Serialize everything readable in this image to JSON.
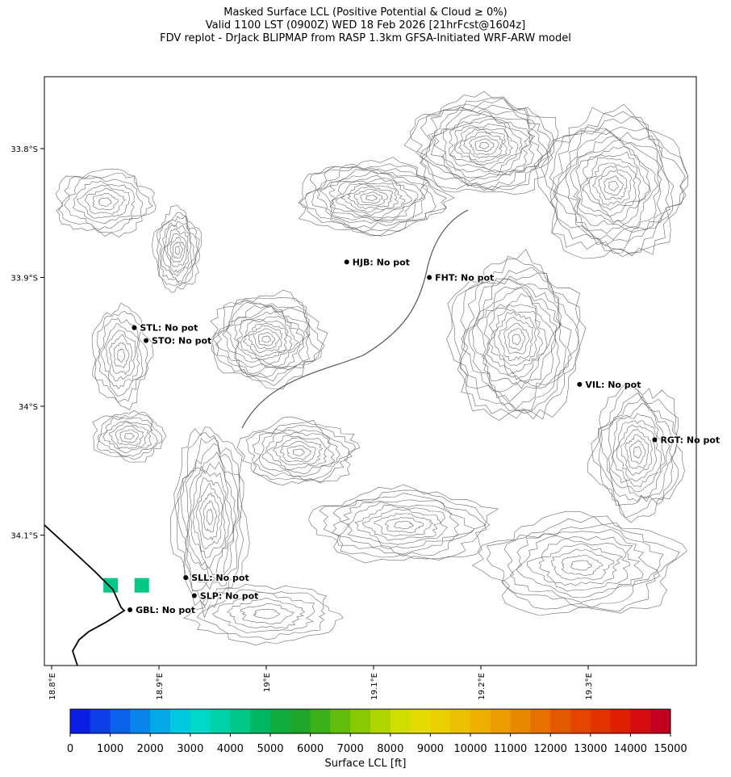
{
  "title": {
    "line1": "Masked Surface LCL (Positive Potential & Cloud ≥ 0%)",
    "line2": "Valid 1100 LST (0900Z) WED 18 Feb 2026 [21hrFcst@1604z]",
    "line3": "FDV replot - DrJack BLIPMAP from RASP 1.3km GFSA-Initiated WRF-ARW model"
  },
  "axes": {
    "lat_ticks": [
      "33.8°S",
      "33.9°S",
      "34°S",
      "34.1°S"
    ],
    "lon_ticks": [
      "18.8°E",
      "18.9°E",
      "19°E",
      "19.1°E",
      "19.2°E",
      "19.3°E"
    ]
  },
  "stations": [
    {
      "label": "HJB: No pot",
      "lon": 19.075,
      "lat": 33.888
    },
    {
      "label": "FHT: No pot",
      "lon": 19.152,
      "lat": 33.9
    },
    {
      "label": "STL: No pot",
      "lon": 18.877,
      "lat": 33.939
    },
    {
      "label": "STO: No pot",
      "lon": 18.888,
      "lat": 33.949
    },
    {
      "label": "VIL: No pot",
      "lon": 19.292,
      "lat": 33.983
    },
    {
      "label": "RGT: No pot",
      "lon": 19.362,
      "lat": 34.026
    },
    {
      "label": "SLL: No pot",
      "lon": 18.925,
      "lat": 34.133
    },
    {
      "label": "SLP: No pot",
      "lon": 18.933,
      "lat": 34.147
    },
    {
      "label": "GBL: No pot",
      "lon": 18.873,
      "lat": 34.158
    }
  ],
  "lcl_cells": [
    {
      "lon": 18.855,
      "lat": 34.139,
      "value_ft": 4000
    },
    {
      "lon": 18.884,
      "lat": 34.139,
      "value_ft": 4000
    }
  ],
  "colorbar": {
    "label": "Surface LCL [ft]",
    "ticks": [
      "0",
      "1000",
      "2000",
      "3000",
      "4000",
      "5000",
      "6000",
      "7000",
      "8000",
      "9000",
      "10000",
      "11000",
      "12000",
      "13000",
      "14000",
      "15000"
    ],
    "colors": [
      "#0a1ee6",
      "#0b3ee6",
      "#0a62ea",
      "#0785e8",
      "#04a8e4",
      "#00c8de",
      "#00d8cc",
      "#00d2a8",
      "#00c886",
      "#00b864",
      "#10ac3c",
      "#1fa62a",
      "#3cb018",
      "#62bc0c",
      "#8ac802",
      "#b0d400",
      "#d2de00",
      "#e4dc00",
      "#ead000",
      "#ecc000",
      "#eeb000",
      "#ea9c00",
      "#e68800",
      "#e67000",
      "#e45800",
      "#e44400",
      "#e23200",
      "#e01e00",
      "#d60c0e",
      "#c40020"
    ]
  }
}
